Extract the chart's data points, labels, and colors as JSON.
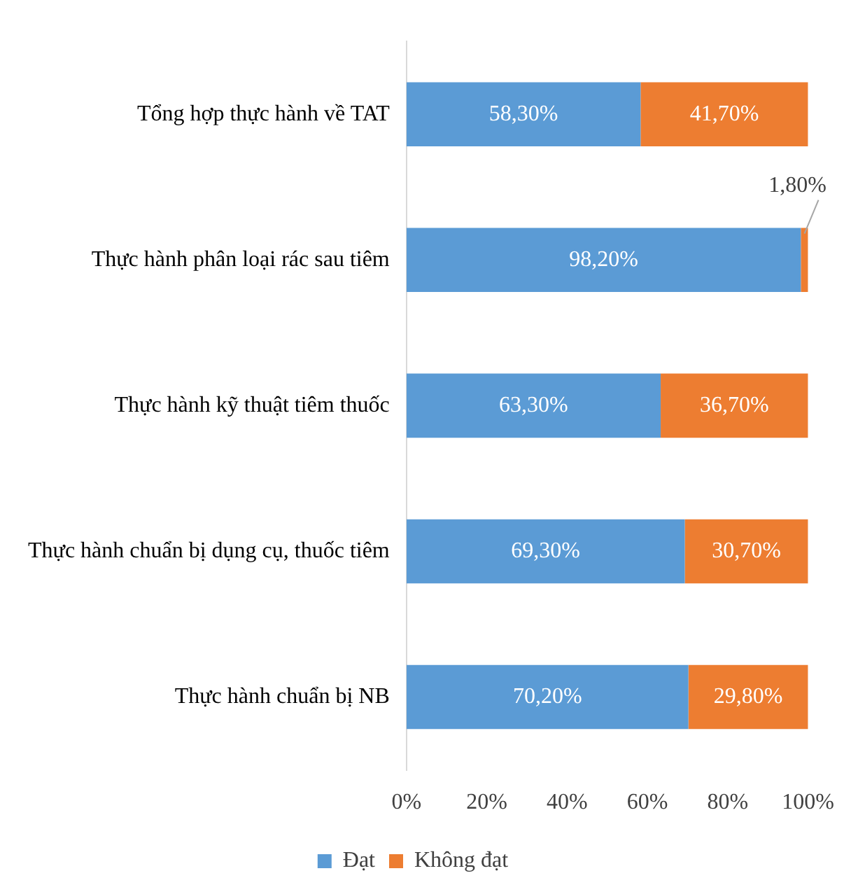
{
  "chart_data": {
    "type": "bar",
    "orientation": "horizontal",
    "stacked": true,
    "categories": [
      "Tổng hợp thực hành về TAT",
      "Thực hành phân loại rác sau tiêm",
      "Thực hành kỹ thuật tiêm thuốc",
      "Thực hành chuẩn bị dụng cụ, thuốc tiêm",
      "Thực hành chuẩn bị NB"
    ],
    "series": [
      {
        "name": "Đạt",
        "color": "#5b9bd5",
        "values": [
          58.3,
          98.2,
          63.3,
          69.3,
          70.2
        ],
        "value_labels": [
          "58,30%",
          "98,20%",
          "63,30%",
          "69,30%",
          "70,20%"
        ]
      },
      {
        "name": "Không đạt",
        "color": "#ed7d31",
        "values": [
          41.7,
          1.8,
          36.7,
          30.7,
          29.8
        ],
        "value_labels": [
          "41,70%",
          "1,80%",
          "36,70%",
          "30,70%",
          "29,80%"
        ]
      }
    ],
    "xlim": [
      0,
      100
    ],
    "xticks": [
      {
        "value": 0,
        "label": "0%"
      },
      {
        "value": 20,
        "label": "20%"
      },
      {
        "value": 40,
        "label": "40%"
      },
      {
        "value": 60,
        "label": "60%"
      },
      {
        "value": 80,
        "label": "80%"
      },
      {
        "value": 100,
        "label": "100%"
      }
    ],
    "grid": false,
    "legend": "bottom"
  }
}
